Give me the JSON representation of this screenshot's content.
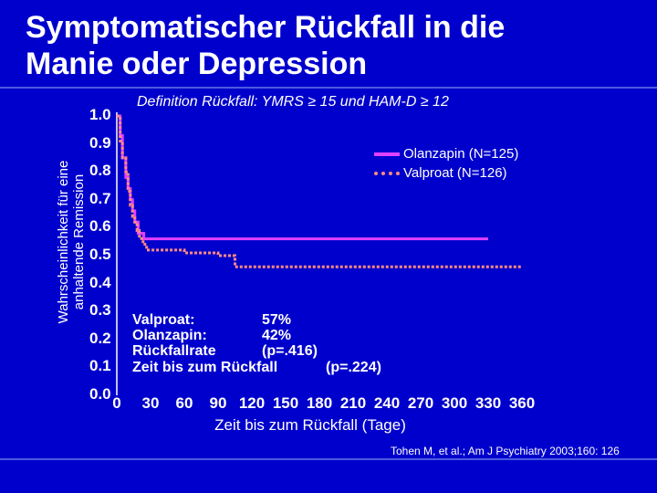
{
  "title_line1": "Symptomatischer Rückfall in die",
  "title_line2": "Manie oder Depression",
  "definition": "Definition Rückfall: YMRS ≥ 15 und HAM-D ≥ 12",
  "source": "Tohen M, et al.; Am J Psychiatry 2003;160: 126",
  "annotations": {
    "valproat_label": "Valproat:",
    "valproat_value": "57%",
    "olanzapin_label": "Olanzapin:",
    "olanzapin_value": "42%",
    "rate_label": "Rückfallrate",
    "rate_p": "(p=.416)",
    "time_label": "Zeit bis zum Rückfall",
    "time_p": "(p=.224)"
  },
  "colors": {
    "background": "#0000CC",
    "olanzapin": "#E040FF",
    "valproat": "#FF8C80",
    "text": "#FFFFFF"
  },
  "chart_data": {
    "type": "line",
    "title": "Symptomatischer Rückfall in die Manie oder Depression",
    "xlabel": "Zeit bis zum Rückfall (Tage)",
    "ylabel_line1": "Wahrscheinlichkeit für eine",
    "ylabel_line2": "anhaltende Remission",
    "xlim": [
      0,
      360
    ],
    "ylim": [
      0,
      1
    ],
    "xticks": [
      "0",
      "30",
      "60",
      "90",
      "120",
      "150",
      "180",
      "210",
      "240",
      "270",
      "300",
      "330",
      "360"
    ],
    "yticks": [
      "1.0",
      "0.9",
      "0.8",
      "0.7",
      "0.6",
      "0.5",
      "0.4",
      "0.3",
      "0.2",
      "0.1",
      "0.0"
    ],
    "legend_position": "top-right",
    "series": [
      {
        "name": "Olanzapin (N=125)",
        "style": "solid",
        "x": [
          0,
          3,
          5,
          8,
          10,
          12,
          14,
          16,
          19,
          24,
          30,
          330
        ],
        "y": [
          1.0,
          0.93,
          0.85,
          0.78,
          0.74,
          0.7,
          0.66,
          0.62,
          0.58,
          0.56,
          0.56,
          0.56
        ]
      },
      {
        "name": "Valproat (N=126)",
        "style": "dotted",
        "x": [
          0,
          3,
          5,
          8,
          10,
          12,
          14,
          16,
          18,
          20,
          22,
          25,
          28,
          60,
          90,
          100,
          105,
          360
        ],
        "y": [
          1.0,
          0.91,
          0.85,
          0.8,
          0.73,
          0.68,
          0.64,
          0.62,
          0.59,
          0.57,
          0.55,
          0.53,
          0.52,
          0.51,
          0.5,
          0.5,
          0.46,
          0.46
        ]
      }
    ]
  }
}
